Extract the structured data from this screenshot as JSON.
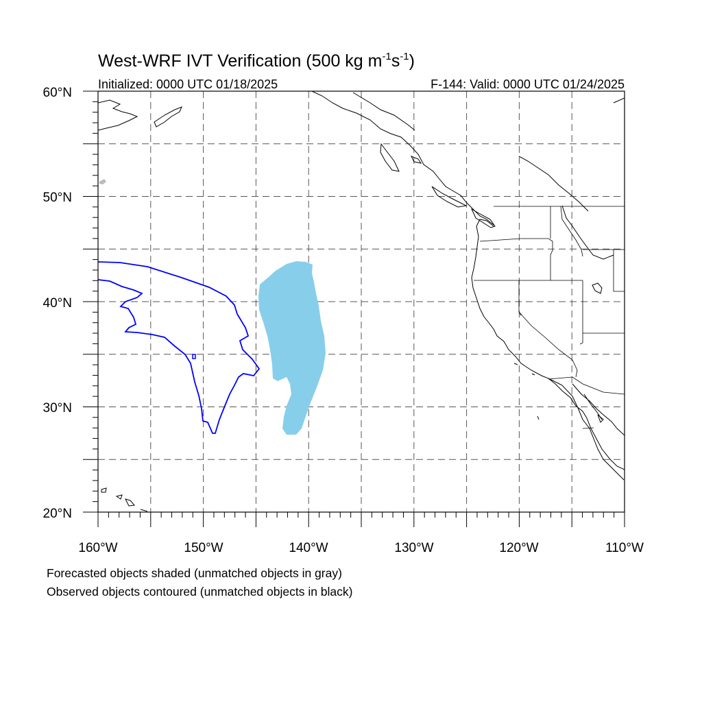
{
  "title": {
    "text": "West-WRF IVT Verification (500 kg m",
    "sup1": "-1",
    "mid": "s",
    "sup2": "-1",
    "end": ")"
  },
  "init_label": "Initialized: 0000 UTC 01/18/2025",
  "valid_label": "F-144: Valid: 0000 UTC 01/24/2025",
  "map": {
    "lon_range": [
      -160,
      -110
    ],
    "lat_range": [
      20,
      60
    ],
    "grid_lons": [
      -155,
      -150,
      -145,
      -140,
      -135,
      -130,
      -125,
      -120,
      -115
    ],
    "grid_lats": [
      25,
      30,
      35,
      40,
      45,
      50,
      55
    ],
    "lon_labels": [
      "160°W",
      "150°W",
      "140°W",
      "130°W",
      "120°W",
      "110°W"
    ],
    "lat_labels": [
      "60°N",
      "50°N",
      "40°N",
      "30°N",
      "20°N"
    ],
    "colors": {
      "forecast_object": "#87ceeb",
      "observed_contour": "#0000ff",
      "unmatched_forecast": "#bbbbbb",
      "coastline": "#000000"
    }
  },
  "legend": {
    "line1": "Forecasted objects shaded (unmatched objects in gray)",
    "line2": "Observed objects contoured (unmatched objects in black)"
  }
}
